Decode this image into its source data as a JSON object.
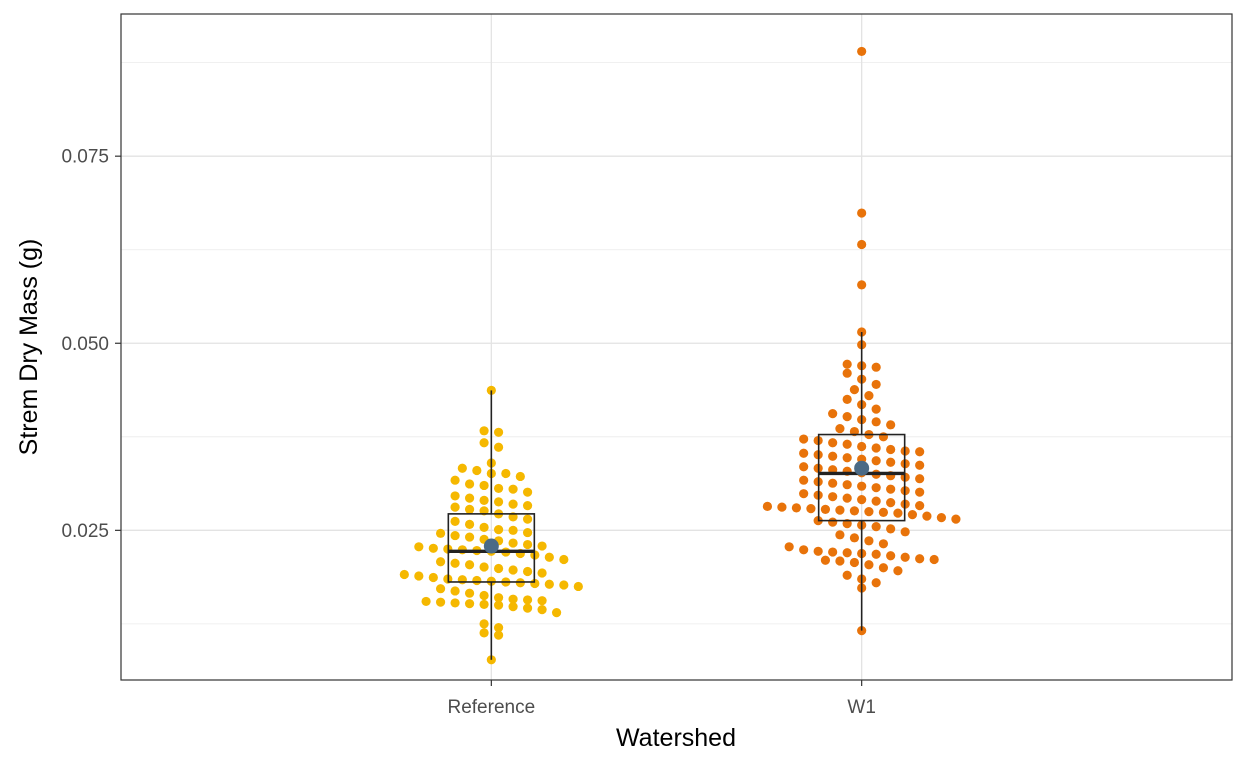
{
  "chart_data": {
    "type": "dotplot-boxplot",
    "xlabel": "Watershed",
    "ylabel": "Strem Dry Mass (g)",
    "categories": [
      "Reference",
      "W1"
    ],
    "y_ticks": [
      {
        "value": 0.025,
        "label": "0.025"
      },
      {
        "value": 0.05,
        "label": "0.050"
      },
      {
        "value": 0.075,
        "label": "0.075"
      }
    ],
    "ylim": [
      0.005,
      0.094
    ],
    "grid": true,
    "mean_color": "#4a6a86",
    "groups": [
      {
        "name": "Reference",
        "color": "#f5b800",
        "box": {
          "min": 0.0077,
          "q1": 0.0181,
          "median": 0.0222,
          "q3": 0.0272,
          "max": 0.0437,
          "mean": 0.0229
        },
        "points": [
          0.0437,
          0.0383,
          0.0381,
          0.0367,
          0.0361,
          0.034,
          0.0333,
          0.033,
          0.0326,
          0.0326,
          0.0322,
          0.0317,
          0.0312,
          0.031,
          0.0306,
          0.0305,
          0.0301,
          0.0296,
          0.0293,
          0.029,
          0.0288,
          0.0285,
          0.0283,
          0.0281,
          0.0278,
          0.0276,
          0.0272,
          0.0268,
          0.0265,
          0.0262,
          0.0258,
          0.0254,
          0.0251,
          0.025,
          0.0247,
          0.0246,
          0.0243,
          0.0241,
          0.0238,
          0.0236,
          0.0233,
          0.0231,
          0.0229,
          0.0228,
          0.0226,
          0.0225,
          0.0224,
          0.0223,
          0.0222,
          0.0221,
          0.0219,
          0.0217,
          0.0214,
          0.0211,
          0.0208,
          0.0206,
          0.0204,
          0.0201,
          0.0199,
          0.0197,
          0.0195,
          0.0193,
          0.0191,
          0.0189,
          0.0187,
          0.0185,
          0.0184,
          0.0183,
          0.0182,
          0.0181,
          0.018,
          0.0179,
          0.0178,
          0.0177,
          0.0175,
          0.0172,
          0.0169,
          0.0166,
          0.0163,
          0.016,
          0.0158,
          0.0157,
          0.0156,
          0.0155,
          0.0154,
          0.0153,
          0.0152,
          0.0151,
          0.015,
          0.0148,
          0.0146,
          0.0144,
          0.014,
          0.0125,
          0.012,
          0.0113,
          0.011,
          0.0077
        ]
      },
      {
        "name": "W1",
        "color": "#e8730a",
        "box": {
          "min": 0.0116,
          "q1": 0.0263,
          "median": 0.0326,
          "q3": 0.0378,
          "max": 0.0515,
          "mean": 0.0333
        },
        "points": [
          0.089,
          0.0674,
          0.0632,
          0.0578,
          0.0515,
          0.0498,
          0.0472,
          0.047,
          0.0468,
          0.046,
          0.0452,
          0.0445,
          0.0438,
          0.043,
          0.0425,
          0.0418,
          0.0412,
          0.0406,
          0.0402,
          0.0398,
          0.0395,
          0.0391,
          0.0386,
          0.0382,
          0.0378,
          0.0375,
          0.0372,
          0.037,
          0.0367,
          0.0365,
          0.0362,
          0.036,
          0.0358,
          0.0356,
          0.0355,
          0.0353,
          0.0351,
          0.0349,
          0.0347,
          0.0345,
          0.0343,
          0.0341,
          0.0339,
          0.0337,
          0.0335,
          0.0333,
          0.0331,
          0.0329,
          0.0327,
          0.0325,
          0.0323,
          0.0321,
          0.0319,
          0.0317,
          0.0315,
          0.0313,
          0.0311,
          0.0309,
          0.0307,
          0.0305,
          0.0303,
          0.0301,
          0.0299,
          0.0297,
          0.0295,
          0.0293,
          0.0291,
          0.0289,
          0.0287,
          0.0285,
          0.0283,
          0.0282,
          0.0281,
          0.028,
          0.0279,
          0.0278,
          0.0277,
          0.0276,
          0.0275,
          0.0274,
          0.0273,
          0.0271,
          0.0269,
          0.0267,
          0.0265,
          0.0263,
          0.0261,
          0.0259,
          0.0257,
          0.0255,
          0.0252,
          0.0248,
          0.0244,
          0.024,
          0.0236,
          0.0232,
          0.0228,
          0.0224,
          0.0222,
          0.0221,
          0.022,
          0.0219,
          0.0218,
          0.0216,
          0.0214,
          0.0212,
          0.0211,
          0.021,
          0.0209,
          0.0207,
          0.0204,
          0.02,
          0.0196,
          0.019,
          0.0185,
          0.018,
          0.0173,
          0.0116
        ]
      }
    ]
  }
}
